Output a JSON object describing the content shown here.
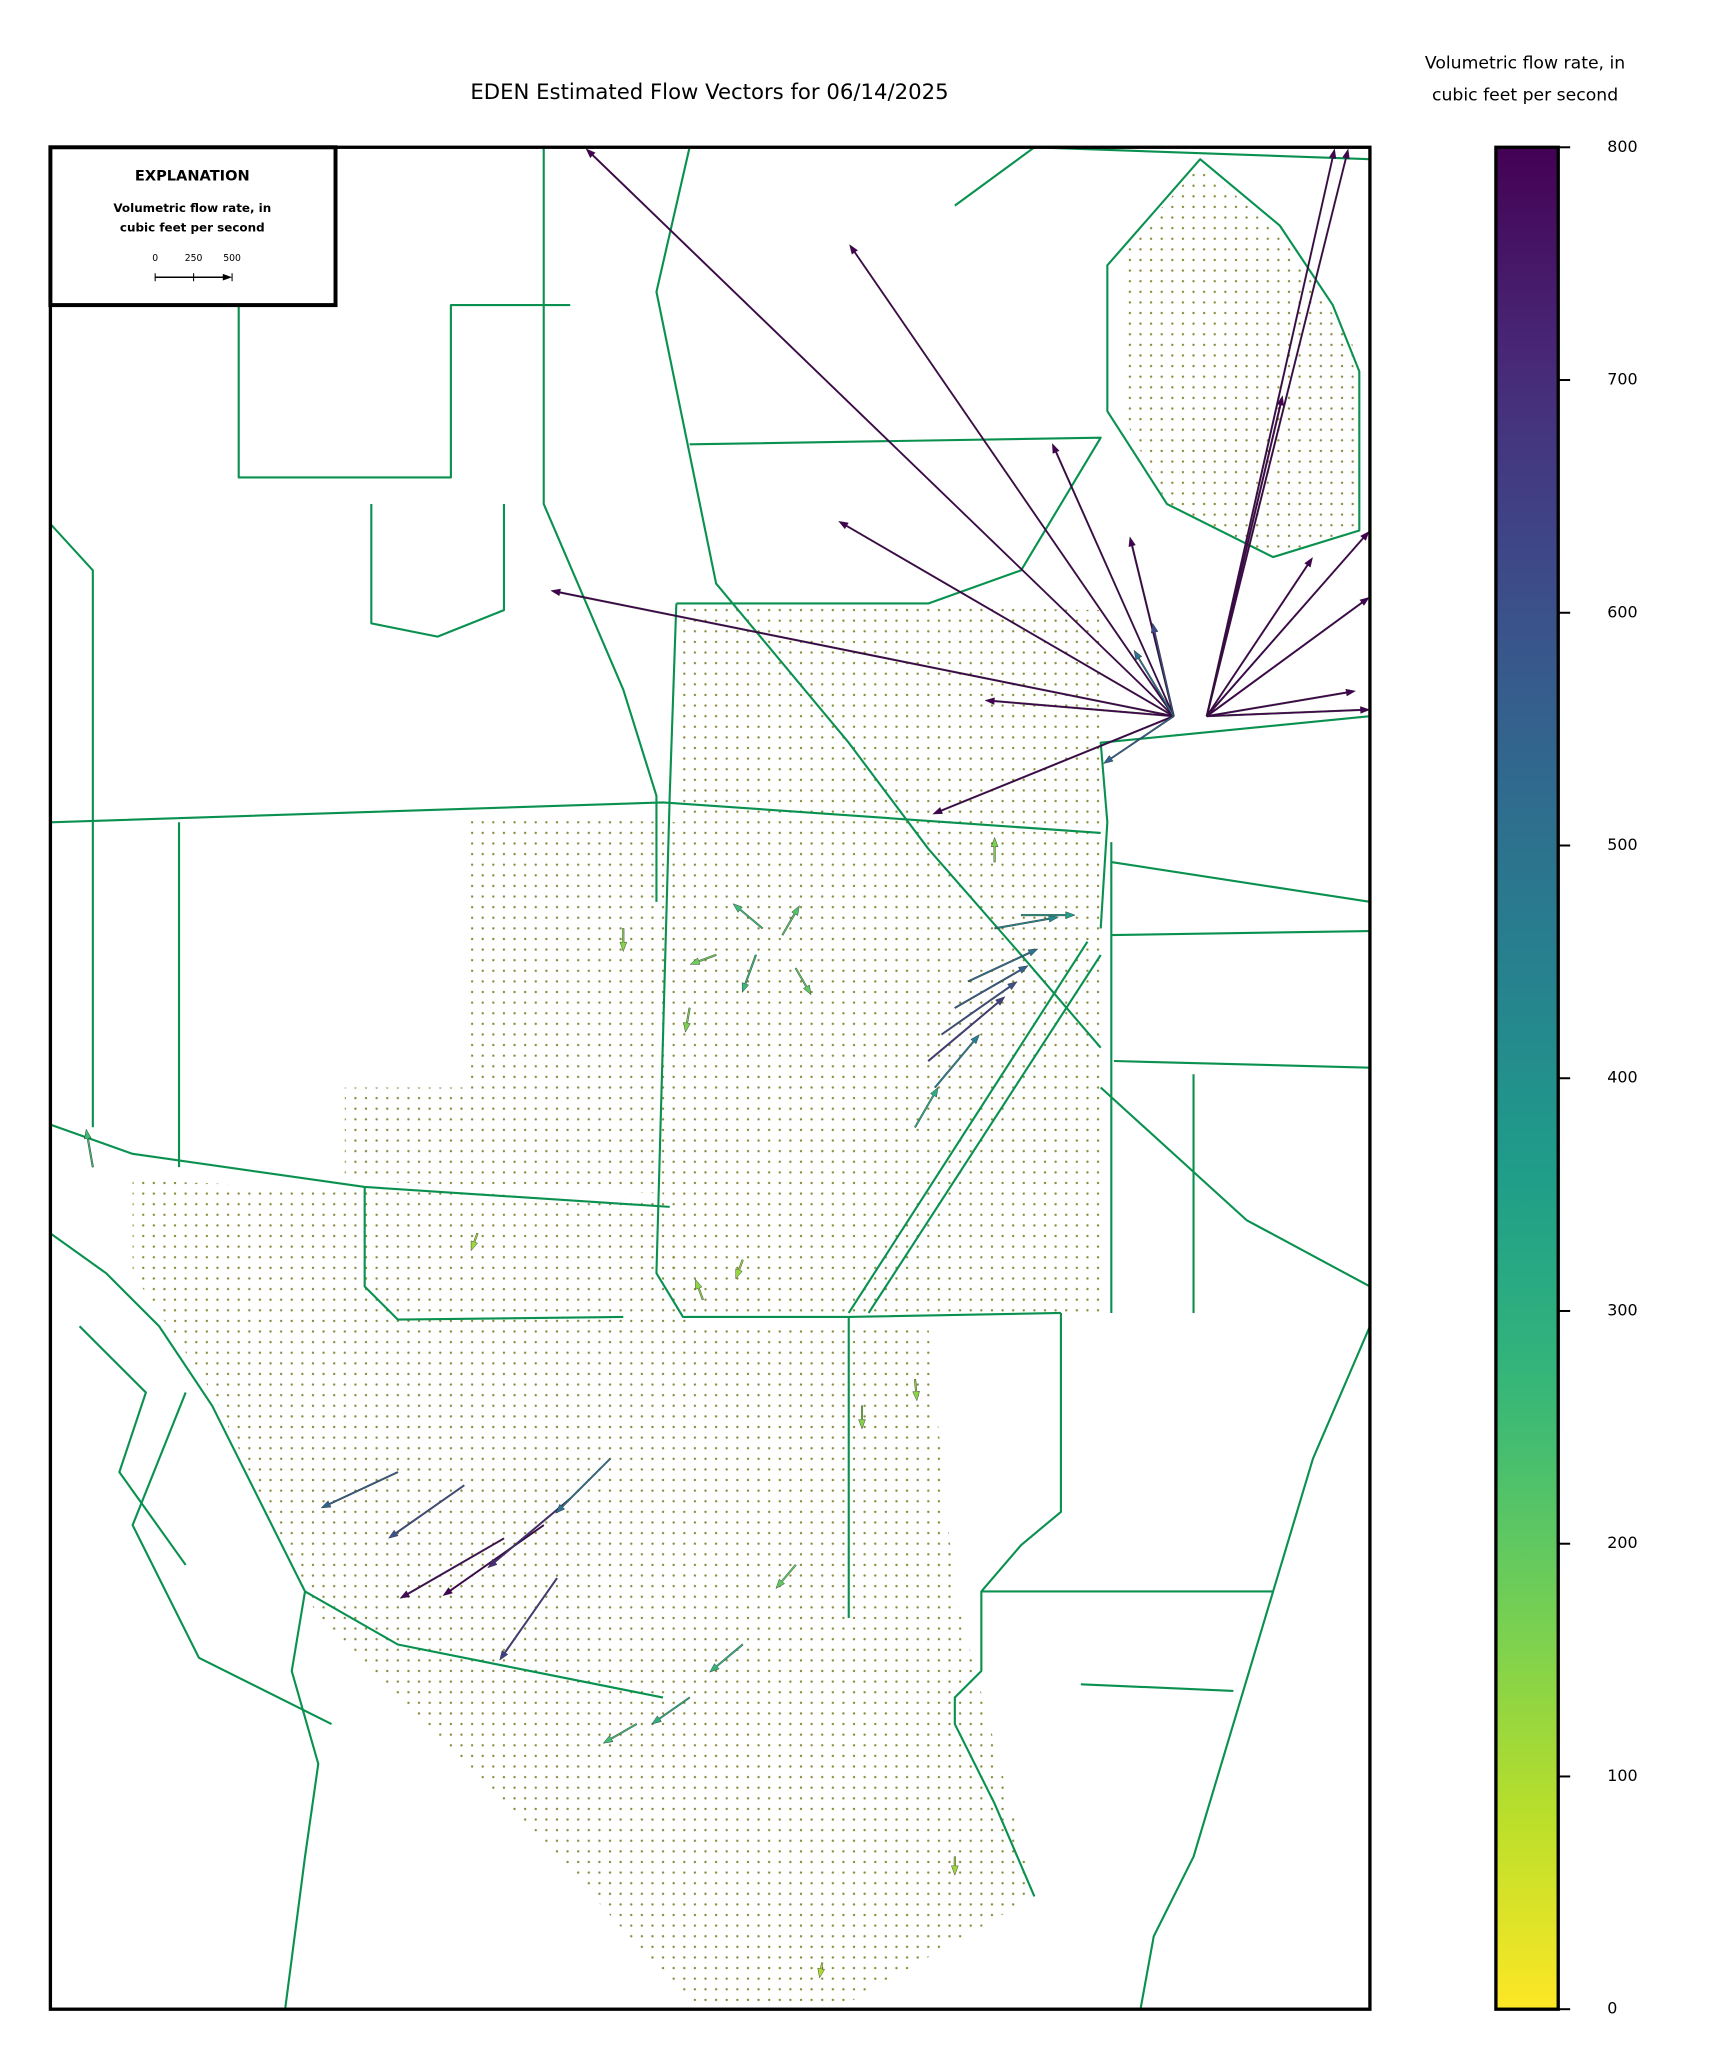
{
  "title": "EDEN Estimated Flow Vectors for 06/14/2025",
  "explanation": {
    "heading": "EXPLANATION",
    "label_lines": [
      "Volumetric flow rate, in",
      "cubic feet per second"
    ],
    "scale_ticks": [
      0,
      250,
      500
    ]
  },
  "colorbar": {
    "label_lines": [
      "Volumetric flow rate, in",
      "cubic feet per second"
    ],
    "clim": [
      0,
      800
    ],
    "ticks": [
      0,
      100,
      200,
      300,
      400,
      500,
      600,
      700,
      800
    ]
  },
  "flow_vectors": [
    {
      "magnitude": 4130,
      "angle": 168.6
    },
    {
      "magnitude": 2520,
      "angle": 149.8
    },
    {
      "magnitude": 3720,
      "angle": 124.5
    },
    {
      "magnitude": 5310,
      "angle": 136
    },
    {
      "magnitude": 1940,
      "angle": 114
    },
    {
      "magnitude": 1200,
      "angle": 103.7
    },
    {
      "magnitude": 1230,
      "angle": 175.2
    },
    {
      "magnitude": 1690,
      "angle": 202.1
    },
    {
      "magnitude": 3780,
      "angle": 77.3
    },
    {
      "magnitude": 3800,
      "angle": 76
    },
    {
      "magnitude": 2140,
      "angle": 76.7
    },
    {
      "magnitude": 1240,
      "angle": 56.3
    },
    {
      "magnitude": 1600,
      "angle": 48.7
    },
    {
      "magnitude": 1310,
      "angle": 36.2
    },
    {
      "magnitude": 980,
      "angle": 9.6
    },
    {
      "magnitude": 1060,
      "angle": 2.3
    },
    {
      "magnitude": 620,
      "angle": 102.8
    },
    {
      "magnitude": 500,
      "angle": 121
    },
    {
      "magnitude": 550,
      "angle": 214
    },
    {
      "magnitude": 650,
      "angle": 40
    },
    {
      "magnitude": 600,
      "angle": 35
    },
    {
      "magnitude": 550,
      "angle": 30
    },
    {
      "magnitude": 450,
      "angle": 50
    },
    {
      "magnitude": 500,
      "angle": 25
    },
    {
      "magnitude": 420,
      "angle": 10
    },
    {
      "magnitude": 350,
      "angle": 0
    },
    {
      "magnitude": 300,
      "angle": 60
    },
    {
      "magnitude": 250,
      "angle": 140
    },
    {
      "magnitude": 220,
      "angle": 60
    },
    {
      "magnitude": 260,
      "angle": 250
    },
    {
      "magnitude": 200,
      "angle": 300
    },
    {
      "magnitude": 180,
      "angle": 200
    },
    {
      "magnitude": 150,
      "angle": 270
    },
    {
      "magnitude": 160,
      "angle": 260
    },
    {
      "magnitude": 800,
      "angle": 215
    },
    {
      "magnitude": 780,
      "angle": 210
    },
    {
      "magnitude": 700,
      "angle": 220
    },
    {
      "magnitude": 600,
      "angle": 215
    },
    {
      "magnitude": 550,
      "angle": 205
    },
    {
      "magnitude": 500,
      "angle": 225
    },
    {
      "magnitude": 650,
      "angle": 235
    },
    {
      "magnitude": 300,
      "angle": 215
    },
    {
      "magnitude": 250,
      "angle": 210
    },
    {
      "magnitude": 280,
      "angle": 220
    },
    {
      "magnitude": 200,
      "angle": 230
    },
    {
      "magnitude": 150,
      "angle": 270
    },
    {
      "magnitude": 140,
      "angle": 275
    },
    {
      "magnitude": 130,
      "angle": 250
    },
    {
      "magnitude": 120,
      "angle": 250
    },
    {
      "magnitude": 120,
      "angle": 270
    },
    {
      "magnitude": 100,
      "angle": 260
    },
    {
      "magnitude": 250,
      "angle": 100
    },
    {
      "magnitude": 140,
      "angle": 110
    },
    {
      "magnitude": 160,
      "angle": 90
    }
  ]
}
